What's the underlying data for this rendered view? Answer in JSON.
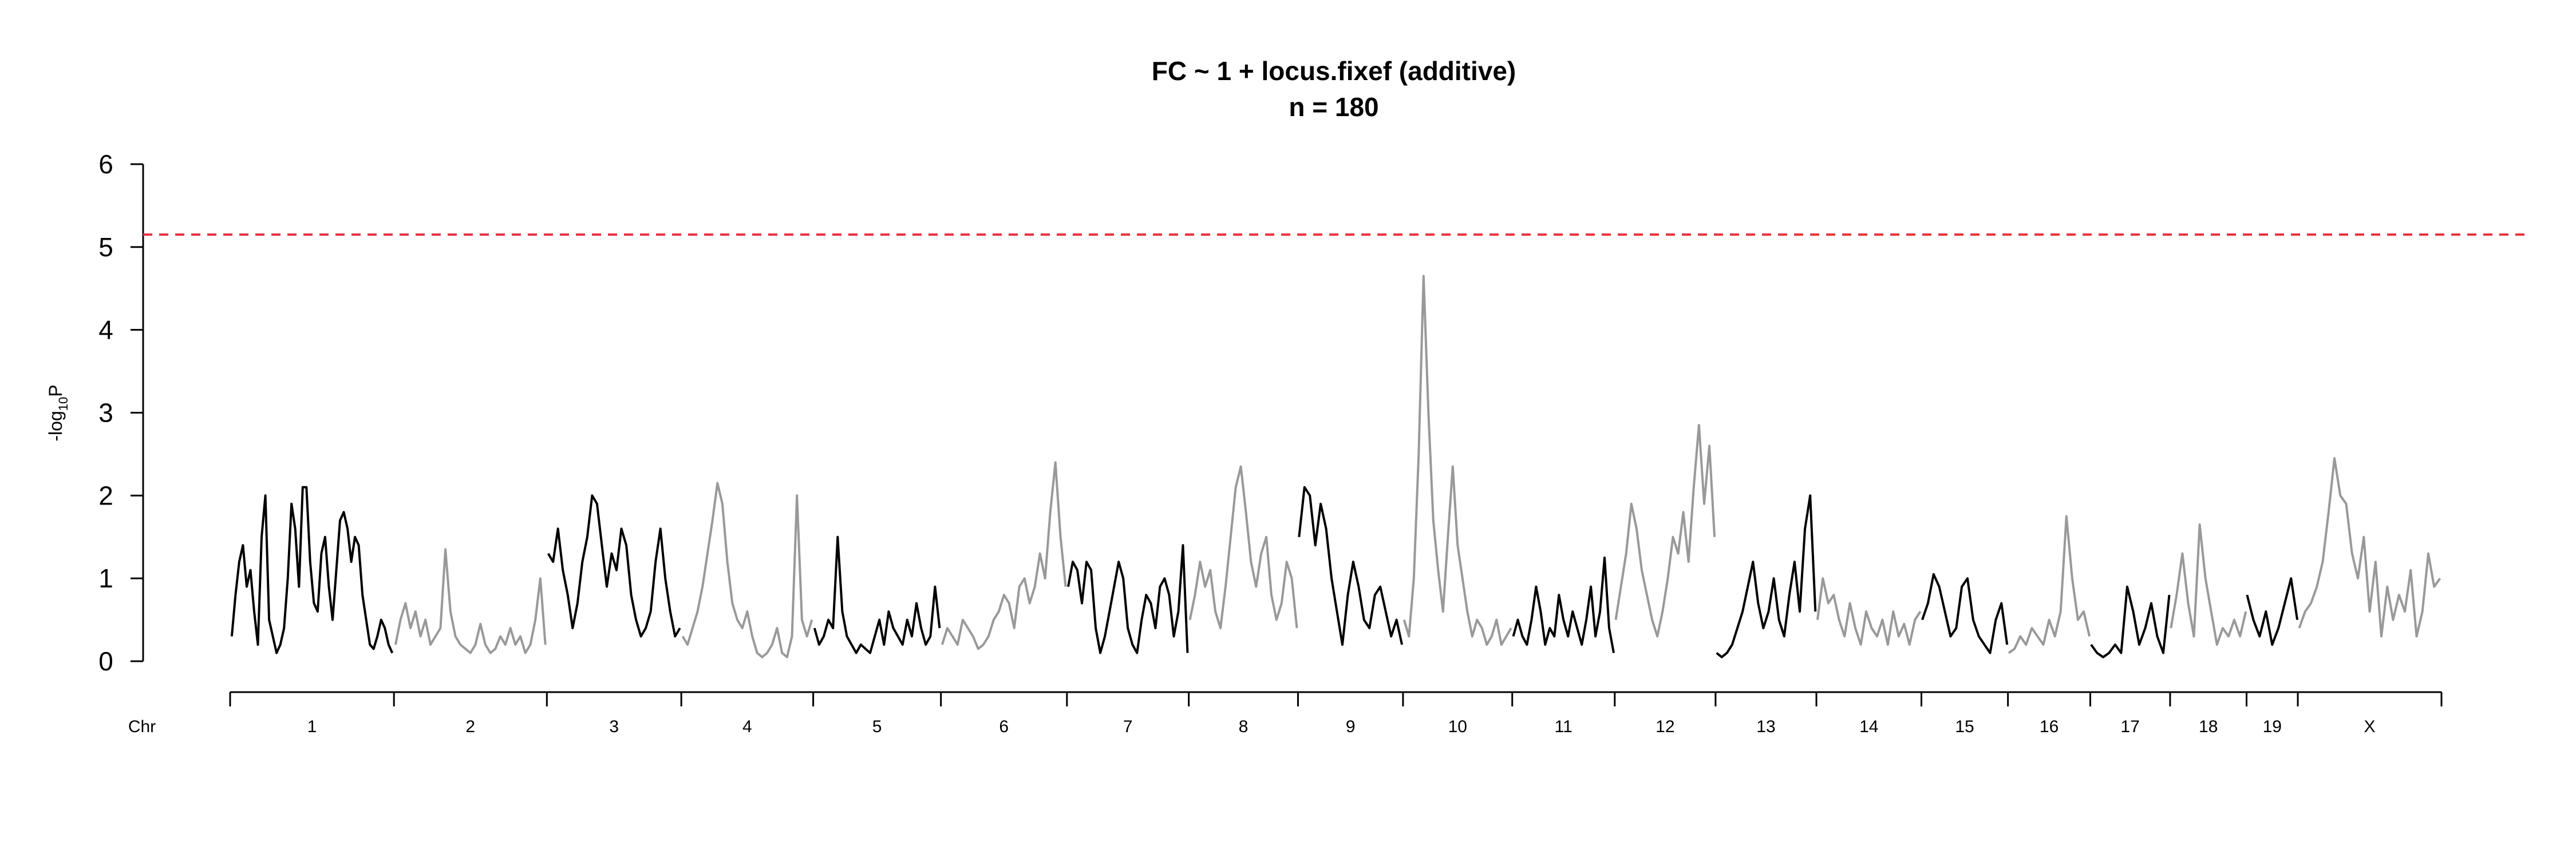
{
  "chart_data": {
    "type": "line",
    "title": "FC ~ 1 + locus.fixef (additive)",
    "subtitle": "n = 180",
    "ylabel": {
      "prefix": "-log",
      "subscript": "10",
      "suffix": "P"
    },
    "xlabel": "Chr",
    "ylim": [
      0,
      6
    ],
    "yticks": [
      "0",
      "1",
      "2",
      "3",
      "4",
      "5",
      "6"
    ],
    "threshold": {
      "value": 5.15,
      "color": "#e8303f",
      "style": "dashed"
    },
    "series_colors": {
      "odd": "#000000",
      "even": "#999999"
    },
    "grid": false,
    "legend": "none",
    "chromosomes": [
      {
        "name": "1",
        "length": 195,
        "values": [
          0.3,
          0.8,
          1.2,
          1.4,
          0.9,
          1.1,
          0.6,
          0.2,
          1.5,
          2.0,
          0.5,
          0.3,
          0.1,
          0.2,
          0.4,
          1.0,
          1.9,
          1.6,
          0.9,
          2.1,
          2.1,
          1.2,
          0.7,
          0.6,
          1.3,
          1.5,
          0.9,
          0.5,
          1.1,
          1.7,
          1.8,
          1.6,
          1.2,
          1.5,
          1.4,
          0.8,
          0.5,
          0.2,
          0.15,
          0.3,
          0.5,
          0.4,
          0.2,
          0.1
        ]
      },
      {
        "name": "2",
        "length": 182,
        "values": [
          0.2,
          0.5,
          0.7,
          0.4,
          0.6,
          0.3,
          0.5,
          0.2,
          0.3,
          0.4,
          1.35,
          0.6,
          0.3,
          0.2,
          0.15,
          0.1,
          0.2,
          0.45,
          0.2,
          0.1,
          0.15,
          0.3,
          0.2,
          0.4,
          0.2,
          0.3,
          0.1,
          0.2,
          0.5,
          1.0,
          0.2
        ]
      },
      {
        "name": "3",
        "length": 160,
        "values": [
          1.3,
          1.2,
          1.6,
          1.1,
          0.8,
          0.4,
          0.7,
          1.2,
          1.5,
          2.0,
          1.9,
          1.4,
          0.9,
          1.3,
          1.1,
          1.6,
          1.4,
          0.8,
          0.5,
          0.3,
          0.4,
          0.6,
          1.2,
          1.6,
          1.0,
          0.6,
          0.3,
          0.4
        ]
      },
      {
        "name": "4",
        "length": 157,
        "values": [
          0.3,
          0.2,
          0.4,
          0.6,
          0.9,
          1.3,
          1.7,
          2.15,
          1.9,
          1.2,
          0.7,
          0.5,
          0.4,
          0.6,
          0.3,
          0.1,
          0.05,
          0.1,
          0.2,
          0.4,
          0.1,
          0.05,
          0.3,
          2.0,
          0.5,
          0.3,
          0.5
        ]
      },
      {
        "name": "5",
        "length": 152,
        "values": [
          0.4,
          0.2,
          0.3,
          0.5,
          0.4,
          1.5,
          0.6,
          0.3,
          0.2,
          0.1,
          0.2,
          0.15,
          0.1,
          0.3,
          0.5,
          0.2,
          0.6,
          0.4,
          0.3,
          0.2,
          0.5,
          0.3,
          0.7,
          0.4,
          0.2,
          0.3,
          0.9,
          0.4
        ]
      },
      {
        "name": "6",
        "length": 150,
        "values": [
          0.2,
          0.4,
          0.3,
          0.2,
          0.5,
          0.4,
          0.3,
          0.15,
          0.2,
          0.3,
          0.5,
          0.6,
          0.8,
          0.7,
          0.4,
          0.9,
          1.0,
          0.7,
          0.9,
          1.3,
          1.0,
          1.8,
          2.4,
          1.5,
          0.9
        ]
      },
      {
        "name": "7",
        "length": 145,
        "values": [
          0.9,
          1.2,
          1.1,
          0.7,
          1.2,
          1.1,
          0.4,
          0.1,
          0.3,
          0.6,
          0.9,
          1.2,
          1.0,
          0.4,
          0.2,
          0.1,
          0.5,
          0.8,
          0.7,
          0.4,
          0.9,
          1.0,
          0.8,
          0.3,
          0.6,
          1.4,
          0.1
        ]
      },
      {
        "name": "8",
        "length": 130,
        "values": [
          0.5,
          0.8,
          1.2,
          0.9,
          1.1,
          0.6,
          0.4,
          0.9,
          1.5,
          2.1,
          2.35,
          1.8,
          1.2,
          0.9,
          1.3,
          1.5,
          0.8,
          0.5,
          0.7,
          1.2,
          1.0,
          0.4
        ]
      },
      {
        "name": "9",
        "length": 125,
        "values": [
          1.5,
          2.1,
          2.0,
          1.4,
          1.9,
          1.6,
          1.0,
          0.6,
          0.2,
          0.8,
          1.2,
          0.9,
          0.5,
          0.4,
          0.8,
          0.9,
          0.6,
          0.3,
          0.5,
          0.2
        ]
      },
      {
        "name": "10",
        "length": 130,
        "values": [
          0.5,
          0.3,
          1.0,
          2.5,
          4.65,
          3.0,
          1.7,
          1.1,
          0.6,
          1.5,
          2.35,
          1.4,
          1.0,
          0.6,
          0.3,
          0.5,
          0.4,
          0.2,
          0.3,
          0.5,
          0.2,
          0.3,
          0.4
        ]
      },
      {
        "name": "11",
        "length": 122,
        "values": [
          0.3,
          0.5,
          0.3,
          0.2,
          0.5,
          0.9,
          0.6,
          0.2,
          0.4,
          0.3,
          0.8,
          0.5,
          0.3,
          0.6,
          0.4,
          0.2,
          0.5,
          0.9,
          0.3,
          0.6,
          1.25,
          0.4,
          0.1
        ]
      },
      {
        "name": "12",
        "length": 120,
        "values": [
          0.5,
          0.9,
          1.3,
          1.9,
          1.6,
          1.1,
          0.8,
          0.5,
          0.3,
          0.6,
          1.0,
          1.5,
          1.3,
          1.8,
          1.2,
          2.1,
          2.85,
          1.9,
          2.6,
          1.5
        ]
      },
      {
        "name": "13",
        "length": 120,
        "values": [
          0.1,
          0.05,
          0.1,
          0.2,
          0.4,
          0.6,
          0.9,
          1.2,
          0.7,
          0.4,
          0.6,
          1.0,
          0.5,
          0.3,
          0.8,
          1.2,
          0.6,
          1.6,
          2.0,
          0.6
        ]
      },
      {
        "name": "14",
        "length": 125,
        "values": [
          0.5,
          1.0,
          0.7,
          0.8,
          0.5,
          0.3,
          0.7,
          0.4,
          0.2,
          0.6,
          0.4,
          0.3,
          0.5,
          0.2,
          0.6,
          0.3,
          0.45,
          0.2,
          0.5,
          0.6
        ]
      },
      {
        "name": "15",
        "length": 103,
        "values": [
          0.5,
          0.7,
          1.05,
          0.9,
          0.6,
          0.3,
          0.4,
          0.9,
          1.0,
          0.5,
          0.3,
          0.2,
          0.1,
          0.5,
          0.7,
          0.2
        ]
      },
      {
        "name": "16",
        "length": 98,
        "values": [
          0.1,
          0.15,
          0.3,
          0.2,
          0.4,
          0.3,
          0.2,
          0.5,
          0.3,
          0.6,
          1.75,
          1.0,
          0.5,
          0.6,
          0.3
        ]
      },
      {
        "name": "17",
        "length": 95,
        "values": [
          0.2,
          0.1,
          0.05,
          0.1,
          0.2,
          0.1,
          0.9,
          0.6,
          0.2,
          0.4,
          0.7,
          0.3,
          0.1,
          0.8
        ]
      },
      {
        "name": "18",
        "length": 91,
        "values": [
          0.4,
          0.8,
          1.3,
          0.7,
          0.3,
          1.65,
          1.0,
          0.6,
          0.2,
          0.4,
          0.3,
          0.5,
          0.3,
          0.6
        ]
      },
      {
        "name": "19",
        "length": 61,
        "values": [
          0.8,
          0.5,
          0.3,
          0.6,
          0.2,
          0.4,
          0.7,
          1.0,
          0.5
        ]
      },
      {
        "name": "X",
        "length": 171,
        "values": [
          0.4,
          0.6,
          0.7,
          0.9,
          1.2,
          1.8,
          2.45,
          2.0,
          1.9,
          1.3,
          1.0,
          1.5,
          0.6,
          1.2,
          0.3,
          0.9,
          0.5,
          0.8,
          0.6,
          1.1,
          0.3,
          0.6,
          1.3,
          0.9,
          1.0
        ]
      }
    ]
  }
}
